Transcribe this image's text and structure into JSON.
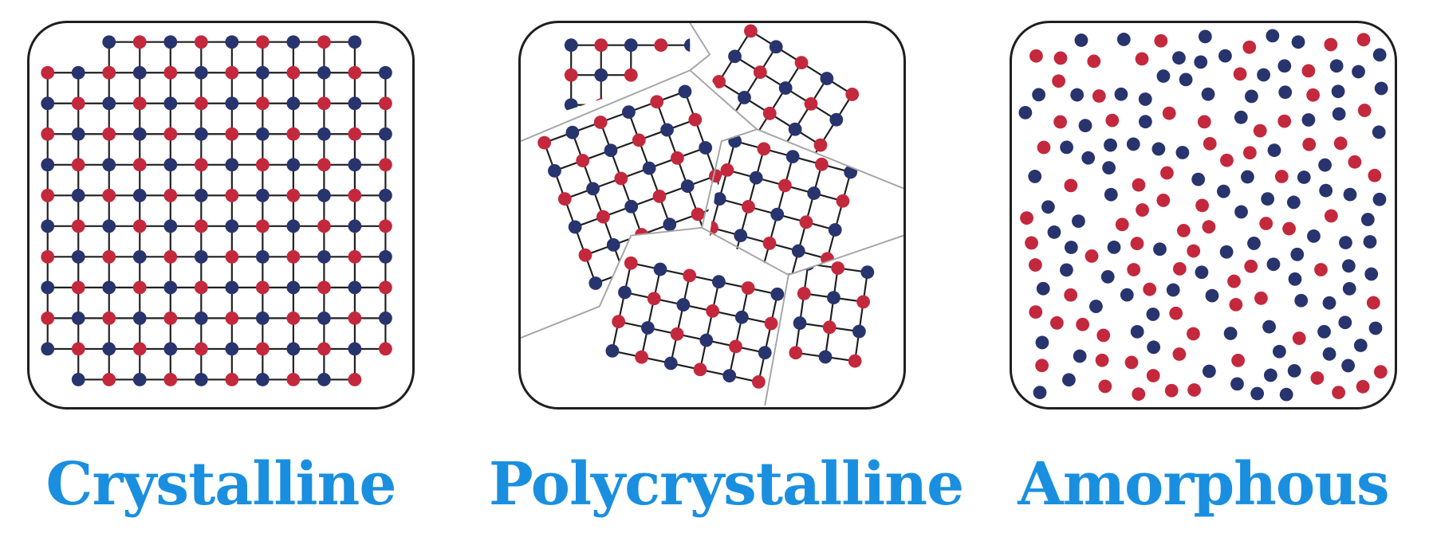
{
  "colors": {
    "atom_a": "#c4283c",
    "atom_b": "#28346e",
    "bond": "#1f1f1f",
    "boundary": "#a6a6a6",
    "caption": "#1a8fe0"
  },
  "panels": [
    {
      "label": "Crystalline",
      "structure": "ordered-lattice"
    },
    {
      "label": "Polycrystalline",
      "structure": "grains"
    },
    {
      "label": "Amorphous",
      "structure": "random"
    }
  ]
}
